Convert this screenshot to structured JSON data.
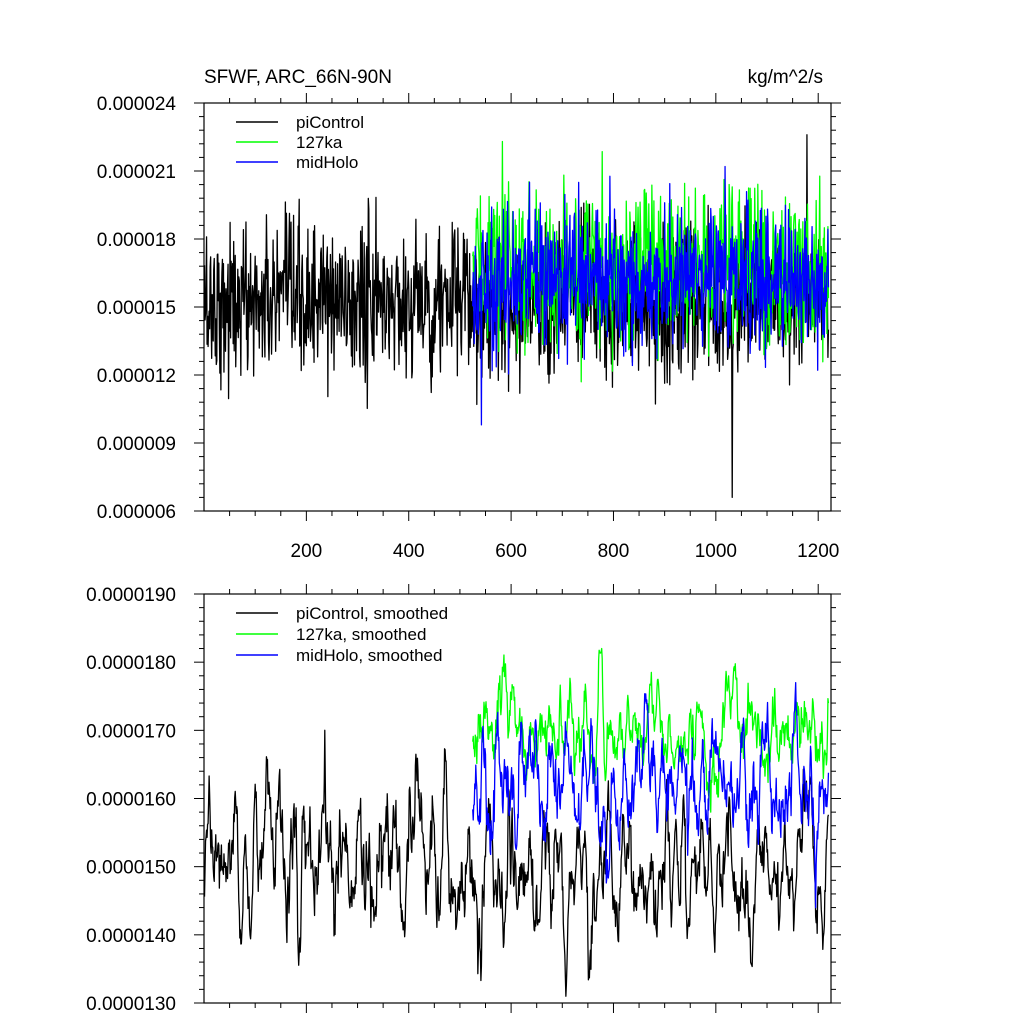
{
  "chart_data": [
    {
      "type": "line",
      "title": "SFWF, ARC_66N-90N",
      "units": "kg/m^2/s",
      "xlabel": "",
      "ylabel": "",
      "xlim": [
        0,
        1225
      ],
      "ylim": [
        6e-06,
        2.4e-05
      ],
      "x_ticks": [
        200,
        400,
        600,
        800,
        1000,
        1200
      ],
      "x_tick_labels": [
        "200",
        "400",
        "600",
        "800",
        "1000",
        "1200"
      ],
      "y_ticks": [
        6e-06,
        9e-06,
        1.2e-05,
        1.5e-05,
        1.8e-05,
        2.1e-05,
        2.4e-05
      ],
      "y_tick_labels": [
        "0.000006",
        "0.000009",
        "0.000012",
        "0.000015",
        "0.000018",
        "0.000021",
        "0.000024"
      ],
      "legend": {
        "placement": "top-left",
        "entries": [
          "piControl",
          "127ka",
          "midHolo"
        ]
      },
      "grid": false,
      "series": [
        {
          "name": "piControl",
          "color": "#000000",
          "x_start": 1,
          "x_end": 1220,
          "mean": 1.52e-05,
          "spread": 1.7e-06,
          "min": 6.6e-06,
          "max": 2.26e-05
        },
        {
          "name": "127ka",
          "color": "#00ff00",
          "x_start": 525,
          "x_end": 1220,
          "mean": 1.68e-05,
          "spread": 1.7e-06,
          "min": 1.17e-05,
          "max": 2.23e-05
        },
        {
          "name": "midHolo",
          "color": "#0000ff",
          "x_start": 525,
          "x_end": 1220,
          "mean": 1.62e-05,
          "spread": 1.6e-06,
          "min": 9.8e-06,
          "max": 2.12e-05
        }
      ]
    },
    {
      "type": "line",
      "title": "",
      "xlabel": "",
      "ylabel": "",
      "xlim": [
        0,
        1225
      ],
      "ylim": [
        1.3e-05,
        1.9e-05
      ],
      "x_ticks": [
        200,
        400,
        600,
        800,
        1000,
        1200
      ],
      "x_tick_labels": [],
      "y_ticks": [
        1.3e-05,
        1.4e-05,
        1.5e-05,
        1.6e-05,
        1.7e-05,
        1.8e-05,
        1.9e-05
      ],
      "y_tick_labels": [
        "0.0000130",
        "0.0000140",
        "0.0000150",
        "0.0000160",
        "0.0000170",
        "0.0000180",
        "0.0000190"
      ],
      "legend": {
        "placement": "top-left",
        "entries": [
          "piControl, smoothed",
          "127ka, smoothed",
          "midHolo, smoothed"
        ]
      },
      "grid": false,
      "series": [
        {
          "name": "piControl, smoothed",
          "color": "#000000",
          "x_start": 1,
          "x_end": 1220,
          "mean": 1.5e-05,
          "spread": 6e-07,
          "min": 1.31e-05,
          "max": 1.7e-05
        },
        {
          "name": "127ka, smoothed",
          "color": "#00ff00",
          "x_start": 525,
          "x_end": 1220,
          "mean": 1.7e-05,
          "spread": 4e-07,
          "min": 1.58e-05,
          "max": 1.82e-05
        },
        {
          "name": "midHolo, smoothed",
          "color": "#0000ff",
          "x_start": 525,
          "x_end": 1220,
          "mean": 1.62e-05,
          "spread": 5e-07,
          "min": 1.44e-05,
          "max": 1.77e-05
        }
      ]
    }
  ]
}
